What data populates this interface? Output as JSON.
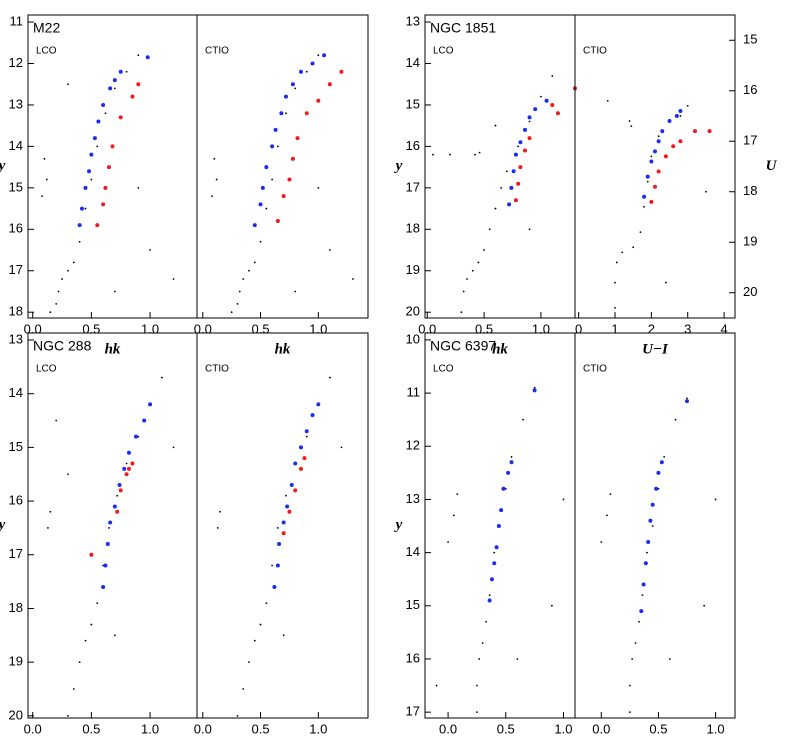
{
  "chart_data": [
    {
      "type": "scatter",
      "title": "M22",
      "label": "LCO",
      "xlabel": "hk",
      "ylabel": "y",
      "xlim": [
        -0.04,
        1.4
      ],
      "ylim": [
        18.14,
        10.83
      ],
      "xticks": [
        {
          "value": 0,
          "label": "0.0"
        },
        0.5,
        {
          "value": 1,
          "label": "1.0"
        }
      ],
      "yticks": [
        11,
        12,
        13,
        14,
        15,
        16,
        17,
        18
      ],
      "series": [
        {
          "color": "#000000",
          "x": [
            0.15,
            0.2,
            0.22,
            0.25,
            0.3,
            0.35,
            0.4,
            0.45,
            0.5,
            0.55,
            0.62,
            0.7,
            0.8,
            0.9,
            0.1,
            0.12,
            0.08,
            0.7,
            1.0,
            1.2,
            0.9,
            0.3
          ],
          "values": [
            18,
            17.8,
            17.5,
            17.2,
            17,
            16.8,
            16.3,
            15.5,
            14.8,
            14,
            13.2,
            12.6,
            12.2,
            11.8,
            14.3,
            14.8,
            15.2,
            17.5,
            16.5,
            17.2,
            15,
            12.5
          ]
        },
        {
          "color": "#1a2cf0",
          "x": [
            0.4,
            0.42,
            0.45,
            0.48,
            0.5,
            0.53,
            0.56,
            0.6,
            0.66,
            0.7,
            0.75,
            0.98
          ],
          "values": [
            15.9,
            15.5,
            15,
            14.6,
            14.2,
            13.8,
            13.4,
            13,
            12.6,
            12.4,
            12.2,
            11.85
          ]
        },
        {
          "color": "#f01a1a",
          "x": [
            0.55,
            0.6,
            0.62,
            0.65,
            0.68,
            0.75,
            0.85,
            0.9
          ],
          "values": [
            15.9,
            15.4,
            15,
            14.5,
            14,
            13.3,
            12.8,
            12.5
          ]
        }
      ]
    },
    {
      "type": "scatter",
      "label": "CTIO",
      "xlabel": "hk",
      "xlim": [
        -0.05,
        1.43
      ],
      "ylim": [
        18.14,
        10.83
      ],
      "xticks": [
        {
          "value": 0,
          "label": "0.0"
        },
        0.5,
        {
          "value": 1,
          "label": "1.0"
        }
      ],
      "series": [
        {
          "color": "#000000",
          "x": [
            0.25,
            0.3,
            0.32,
            0.35,
            0.4,
            0.45,
            0.5,
            0.55,
            0.6,
            0.65,
            0.72,
            0.8,
            0.9,
            1.0,
            0.1,
            0.12,
            0.08,
            0.8,
            1.1,
            1.3,
            1.0
          ],
          "values": [
            18,
            17.8,
            17.5,
            17.2,
            17,
            16.8,
            16.3,
            15.5,
            14.8,
            14,
            13.2,
            12.6,
            12.2,
            11.8,
            14.3,
            14.8,
            15.2,
            17.5,
            16.5,
            17.2,
            15
          ]
        },
        {
          "color": "#1a2cf0",
          "x": [
            0.45,
            0.5,
            0.52,
            0.55,
            0.6,
            0.63,
            0.68,
            0.72,
            0.78,
            0.85,
            0.95,
            1.05
          ],
          "values": [
            15.9,
            15.4,
            15,
            14.5,
            14,
            13.6,
            13.2,
            12.8,
            12.5,
            12.2,
            12,
            11.8
          ]
        },
        {
          "color": "#f01a1a",
          "x": [
            0.65,
            0.7,
            0.75,
            0.78,
            0.82,
            0.9,
            1.0,
            1.1,
            1.2
          ],
          "values": [
            15.8,
            15.2,
            14.8,
            14.3,
            13.8,
            13.2,
            12.9,
            12.5,
            12.2
          ]
        }
      ]
    },
    {
      "type": "scatter",
      "title": "NGC 1851",
      "label": "LCO",
      "xlabel": "hk",
      "ylabel": "y",
      "xlim": [
        -0.02,
        1.3
      ],
      "ylim": [
        20.14,
        12.83
      ],
      "xticks": [
        {
          "value": 0,
          "label": "0.0"
        },
        0.5,
        {
          "value": 1,
          "label": "1.0"
        }
      ],
      "yticks": [
        13,
        14,
        15,
        16,
        17,
        18,
        19,
        20
      ],
      "series": [
        {
          "color": "#000000",
          "x": [
            0.3,
            0.32,
            0.35,
            0.4,
            0.45,
            0.5,
            0.55,
            0.6,
            0.65,
            0.7,
            0.8,
            0.9,
            1.0,
            0.05,
            0.2,
            0.42,
            0.46,
            0.6,
            1.1,
            0.9
          ],
          "values": [
            20,
            19.5,
            19.2,
            19,
            18.8,
            18.5,
            18,
            17.5,
            17,
            16.6,
            16,
            15.4,
            14.8,
            16.2,
            16.2,
            16.2,
            16.15,
            15.5,
            14.3,
            18
          ]
        },
        {
          "color": "#1a2cf0",
          "x": [
            0.72,
            0.74,
            0.76,
            0.78,
            0.82,
            0.86,
            0.9,
            0.95,
            1.05
          ],
          "values": [
            17.4,
            17,
            16.6,
            16.2,
            15.9,
            15.6,
            15.3,
            15.1,
            14.9
          ]
        },
        {
          "color": "#f01a1a",
          "x": [
            0.78,
            0.8,
            0.82,
            0.86,
            0.9,
            1.1,
            1.15,
            1.3
          ],
          "values": [
            17.3,
            16.9,
            16.5,
            16.1,
            15.8,
            15,
            15.2,
            14.6
          ]
        }
      ]
    },
    {
      "type": "scatter",
      "label": "CTIO",
      "xlabel": "U−I",
      "y2label": "U",
      "xlim": [
        -0.1,
        4.3
      ],
      "y2lim": [
        20.5,
        14.5
      ],
      "xticks": [
        0,
        1,
        2,
        3,
        4
      ],
      "y2ticks": [
        15,
        16,
        17,
        18,
        19,
        20
      ],
      "series": [
        {
          "color": "#000000",
          "axis": "y2",
          "x": [
            1,
            1,
            1.05,
            1.2,
            1.5,
            1.7,
            1.8,
            1.9,
            2,
            2.2,
            2.5,
            1.4,
            1.45,
            2.8,
            3,
            0.8,
            3.5,
            2.4
          ],
          "values": [
            20.3,
            19.8,
            19.4,
            19.2,
            19.1,
            18.8,
            18.3,
            17.8,
            17.3,
            16.9,
            16.6,
            16.6,
            16.7,
            16.5,
            16.3,
            16.2,
            18,
            19.8
          ]
        },
        {
          "color": "#1a2cf0",
          "axis": "y2",
          "x": [
            1.8,
            1.9,
            2,
            2.1,
            2.2,
            2.3,
            2.5,
            2.7,
            2.8
          ],
          "values": [
            18.1,
            17.7,
            17.4,
            17.2,
            17,
            16.8,
            16.6,
            16.5,
            16.4
          ]
        },
        {
          "color": "#f01a1a",
          "axis": "y2",
          "x": [
            2,
            2.1,
            2.2,
            2.4,
            2.6,
            2.8,
            3.2,
            3.6
          ],
          "values": [
            18.2,
            17.9,
            17.6,
            17.3,
            17.1,
            17,
            16.8,
            16.8
          ]
        }
      ]
    },
    {
      "type": "scatter",
      "title": "NGC 288",
      "label": "LCO",
      "xlabel": "hk",
      "ylabel": "y",
      "xlim": [
        -0.04,
        1.4
      ],
      "ylim": [
        20.04,
        12.87
      ],
      "xticks": [
        {
          "value": 0,
          "label": "0.0"
        },
        0.5,
        {
          "value": 1,
          "label": "1.0"
        }
      ],
      "yticks": [
        13,
        14,
        15,
        16,
        17,
        18,
        19,
        20
      ],
      "series": [
        {
          "color": "#000000",
          "x": [
            0.3,
            0.35,
            0.4,
            0.45,
            0.5,
            0.55,
            0.6,
            0.65,
            0.72,
            0.8,
            0.9,
            1.0,
            1.1,
            0.15,
            0.13,
            0.3,
            0.7,
            1.2,
            0.2
          ],
          "values": [
            20,
            19.5,
            19,
            18.6,
            18.3,
            17.9,
            17.2,
            16.5,
            15.9,
            15.3,
            14.8,
            14.2,
            13.7,
            16.2,
            16.5,
            15.5,
            18.5,
            15,
            14.5
          ]
        },
        {
          "color": "#1a2cf0",
          "x": [
            0.6,
            0.62,
            0.64,
            0.66,
            0.7,
            0.74,
            0.78,
            0.82,
            0.88,
            0.95,
            1.0
          ],
          "values": [
            17.6,
            17.2,
            16.8,
            16.4,
            16.1,
            15.7,
            15.4,
            15.1,
            14.8,
            14.5,
            14.2
          ]
        },
        {
          "color": "#f01a1a",
          "x": [
            0.5,
            0.72,
            0.75,
            0.8,
            0.85,
            0.82
          ],
          "values": [
            17,
            16.2,
            15.8,
            15.5,
            15.3,
            15.4
          ]
        }
      ]
    },
    {
      "type": "scatter",
      "label": "CTIO",
      "xlabel": "hk",
      "xlim": [
        -0.05,
        1.43
      ],
      "ylim": [
        20.04,
        12.87
      ],
      "xticks": [
        {
          "value": 0,
          "label": "0.0"
        },
        0.5,
        {
          "value": 1,
          "label": "1.0"
        }
      ],
      "series": [
        {
          "color": "#000000",
          "x": [
            0.3,
            0.35,
            0.4,
            0.45,
            0.5,
            0.55,
            0.6,
            0.65,
            0.72,
            0.8,
            0.9,
            1.0,
            1.1,
            0.15,
            0.13,
            0.7,
            1.2
          ],
          "values": [
            20,
            19.5,
            19,
            18.6,
            18.3,
            17.9,
            17.2,
            16.5,
            15.9,
            15.3,
            14.8,
            14.2,
            13.7,
            16.2,
            16.5,
            18.5,
            15
          ]
        },
        {
          "color": "#1a2cf0",
          "x": [
            0.62,
            0.65,
            0.66,
            0.7,
            0.73,
            0.77,
            0.8,
            0.85,
            0.9,
            0.95,
            1.0
          ],
          "values": [
            17.6,
            17.2,
            16.8,
            16.4,
            16.1,
            15.7,
            15.3,
            15,
            14.7,
            14.4,
            14.2
          ]
        },
        {
          "color": "#f01a1a",
          "x": [
            0.7,
            0.75,
            0.8,
            0.85,
            0.88
          ],
          "values": [
            16.6,
            16.2,
            15.8,
            15.4,
            15.2
          ]
        }
      ]
    },
    {
      "type": "scatter",
      "title": "NGC 6397",
      "label": "LCO",
      "xlabel": "hk",
      "ylabel": "y",
      "xlim": [
        -0.2,
        1.1
      ],
      "ylim": [
        17.11,
        9.87
      ],
      "xticks": [
        {
          "value": 0,
          "label": "0.0"
        },
        0.5,
        {
          "value": 1,
          "label": "1.0"
        }
      ],
      "yticks": [
        10,
        11,
        12,
        13,
        14,
        15,
        16,
        17
      ],
      "series": [
        {
          "color": "#000000",
          "x": [
            0.25,
            0.25,
            0.27,
            0.3,
            0.33,
            0.36,
            0.4,
            0.45,
            0.5,
            0.55,
            0.65,
            0.75,
            0,
            0.05,
            0.08,
            0.6,
            0.9,
            -0.1,
            1.0
          ],
          "values": [
            17,
            16.5,
            16,
            15.7,
            15.3,
            14.8,
            14,
            13.5,
            12.8,
            12.2,
            11.5,
            10.9,
            13.8,
            13.3,
            12.9,
            16,
            15,
            16.5,
            13
          ]
        },
        {
          "color": "#1a2cf0",
          "x": [
            0.36,
            0.38,
            0.4,
            0.42,
            0.44,
            0.46,
            0.48,
            0.52,
            0.55,
            0.75
          ],
          "values": [
            14.9,
            14.5,
            14.2,
            13.9,
            13.5,
            13.2,
            12.8,
            12.5,
            12.3,
            10.95
          ]
        }
      ]
    },
    {
      "type": "scatter",
      "label": "CTIO",
      "xlabel": "hk",
      "xlim": [
        -0.23,
        1.17
      ],
      "ylim": [
        17.11,
        9.87
      ],
      "xticks": [
        {
          "value": 0,
          "label": "0.0"
        },
        0.5,
        {
          "value": 1,
          "label": "1.0"
        }
      ],
      "series": [
        {
          "color": "#000000",
          "x": [
            0.25,
            0.25,
            0.27,
            0.3,
            0.33,
            0.36,
            0.4,
            0.45,
            0.5,
            0.55,
            0.65,
            0.75,
            0,
            0.05,
            0.08,
            0.6,
            0.9,
            1.0
          ],
          "values": [
            17,
            16.5,
            16,
            15.7,
            15.3,
            14.8,
            14,
            13.5,
            12.8,
            12.2,
            11.5,
            11.1,
            13.8,
            13.3,
            12.9,
            16,
            15,
            13
          ]
        },
        {
          "color": "#1a2cf0",
          "x": [
            0.35,
            0.37,
            0.39,
            0.41,
            0.43,
            0.45,
            0.48,
            0.5,
            0.53,
            0.75
          ],
          "values": [
            15.1,
            14.6,
            14.2,
            13.8,
            13.4,
            13.1,
            12.8,
            12.5,
            12.3,
            11.15
          ]
        }
      ]
    }
  ]
}
